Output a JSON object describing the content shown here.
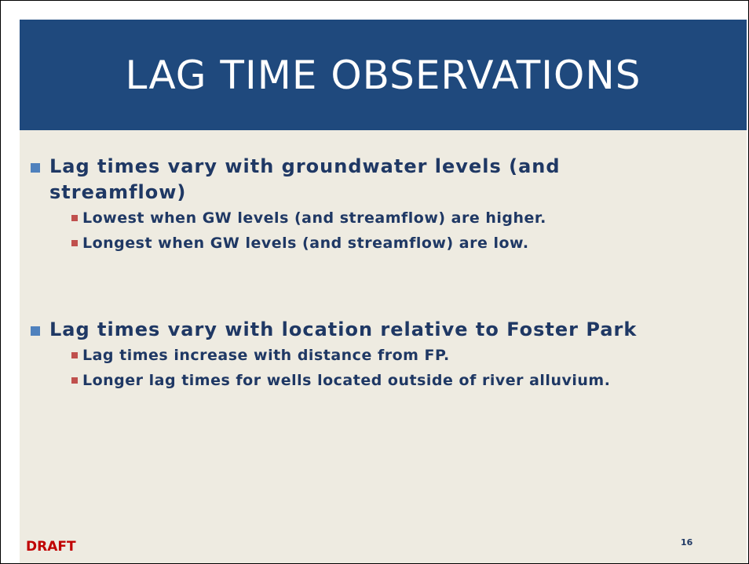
{
  "header": {
    "title": "LAG TIME OBSERVATIONS"
  },
  "bullets": [
    {
      "text": "Lag times vary with groundwater levels (and streamflow)",
      "sub": [
        "Lowest when GW levels (and streamflow) are higher.",
        "Longest when GW levels (and streamflow) are low."
      ]
    },
    {
      "text": "Lag times vary with location relative to Foster Park",
      "sub": [
        "Lag times increase with distance from FP.",
        "Longer lag times for wells located outside of river alluvium."
      ]
    }
  ],
  "footer": {
    "draft": "DRAFT",
    "page": "16"
  }
}
